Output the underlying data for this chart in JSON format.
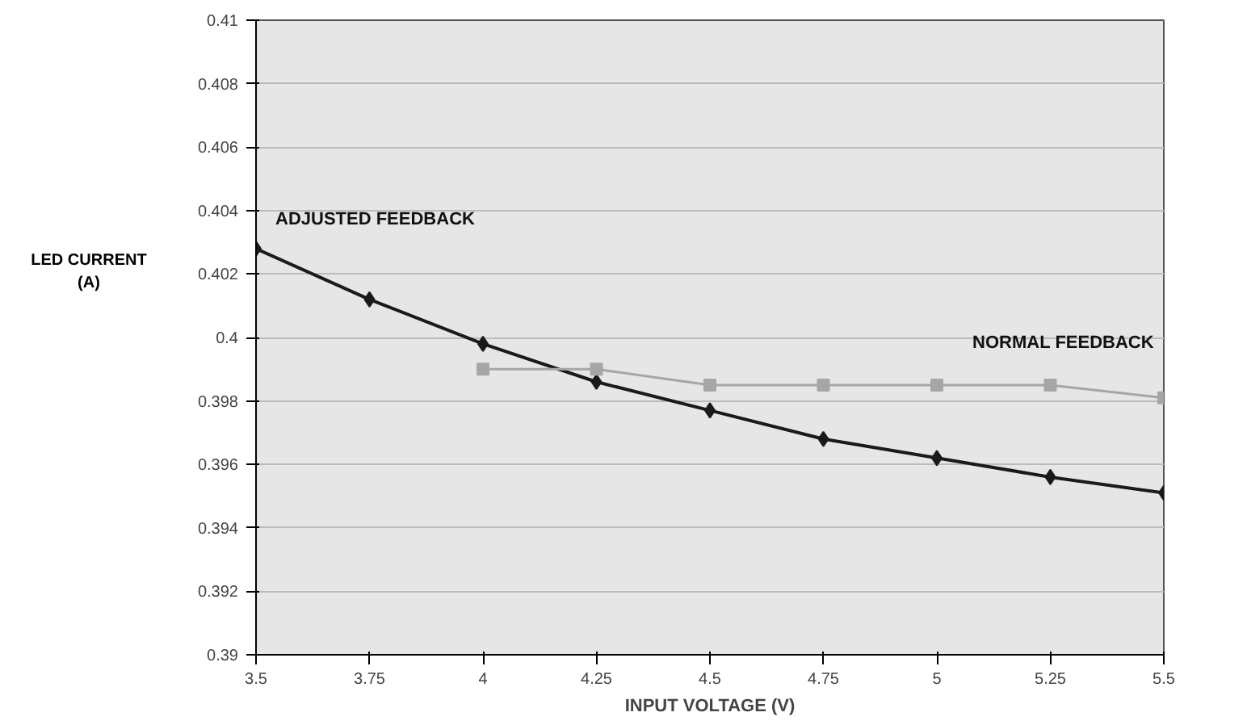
{
  "chart_data": {
    "type": "line",
    "xlabel": "INPUT VOLTAGE (V)",
    "ylabel": "LED CURRENT\n(A)",
    "series": [
      {
        "name": "ADJUSTED FEEDBACK",
        "color": "#1a1a1a",
        "marker": "diamond",
        "x": [
          3.5,
          3.75,
          4,
          4.25,
          4.5,
          4.75,
          5,
          5.25,
          5.5
        ],
        "values": [
          0.4028,
          0.4012,
          0.3998,
          0.3986,
          0.3977,
          0.3968,
          0.3962,
          0.3956,
          0.3951
        ]
      },
      {
        "name": "NORMAL FEEDBACK",
        "color": "#a6a6a6",
        "marker": "square",
        "x": [
          4,
          4.25,
          4.5,
          4.75,
          5,
          5.25,
          5.5
        ],
        "values": [
          0.399,
          0.399,
          0.3985,
          0.3985,
          0.3985,
          0.3985,
          0.3981
        ]
      }
    ],
    "xlim": [
      3.5,
      5.5
    ],
    "xticks": [
      3.5,
      3.75,
      4,
      4.25,
      4.5,
      4.75,
      5,
      5.25,
      5.5
    ],
    "ylim": [
      0.39,
      0.41
    ],
    "yticks": [
      0.39,
      0.392,
      0.394,
      0.396,
      0.398,
      0.4,
      0.402,
      0.404,
      0.406,
      0.408,
      0.41
    ],
    "grid": "y"
  }
}
